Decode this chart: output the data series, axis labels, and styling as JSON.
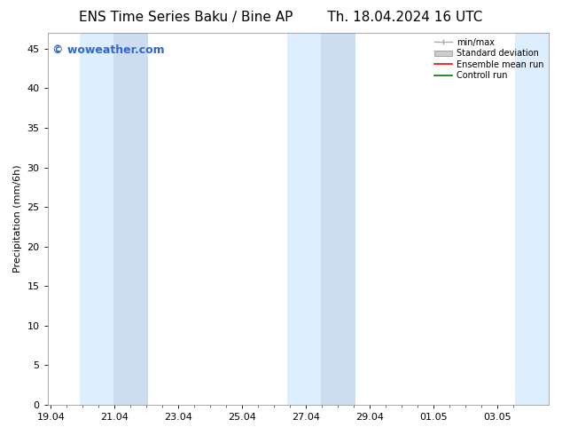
{
  "title_left": "ENS Time Series Baku / Bine AP",
  "title_right": "Th. 18.04.2024 16 UTC",
  "ylabel": "Precipitation (mm/6h)",
  "watermark": "© woweather.com",
  "watermark_color": "#3366cc",
  "ylim": [
    0,
    47
  ],
  "yticks": [
    0,
    5,
    10,
    15,
    20,
    25,
    30,
    35,
    40,
    45
  ],
  "xtick_labels": [
    "19.04",
    "21.04",
    "23.04",
    "25.04",
    "27.04",
    "29.04",
    "01.05",
    "03.05"
  ],
  "xtick_positions": [
    0,
    2,
    4,
    6,
    8,
    10,
    12,
    14
  ],
  "xlim": [
    -0.1,
    15.6
  ],
  "background_color": "#ffffff",
  "plot_bg_color": "#ffffff",
  "shaded_bands": [
    {
      "x_start": 0.9,
      "x_end": 1.95,
      "color": "#ddeeff"
    },
    {
      "x_start": 1.95,
      "x_end": 3.05,
      "color": "#ccddf0"
    },
    {
      "x_start": 7.4,
      "x_end": 8.45,
      "color": "#ddeeff"
    },
    {
      "x_start": 8.45,
      "x_end": 9.55,
      "color": "#ccddf0"
    },
    {
      "x_start": 14.55,
      "x_end": 15.6,
      "color": "#ddeeff"
    }
  ],
  "shade_color": "#ddeeff",
  "legend_entries": [
    {
      "label": "min/max",
      "color": "#aaaaaa",
      "lw": 1.0,
      "style": "minmax"
    },
    {
      "label": "Standard deviation",
      "color": "#cccccc",
      "lw": 5,
      "style": "band"
    },
    {
      "label": "Ensemble mean run",
      "color": "#ff0000",
      "lw": 1.2,
      "style": "line"
    },
    {
      "label": "Controll run",
      "color": "#007700",
      "lw": 1.2,
      "style": "line"
    }
  ],
  "title_fontsize": 11,
  "axis_fontsize": 8,
  "tick_fontsize": 8,
  "watermark_fontsize": 9
}
